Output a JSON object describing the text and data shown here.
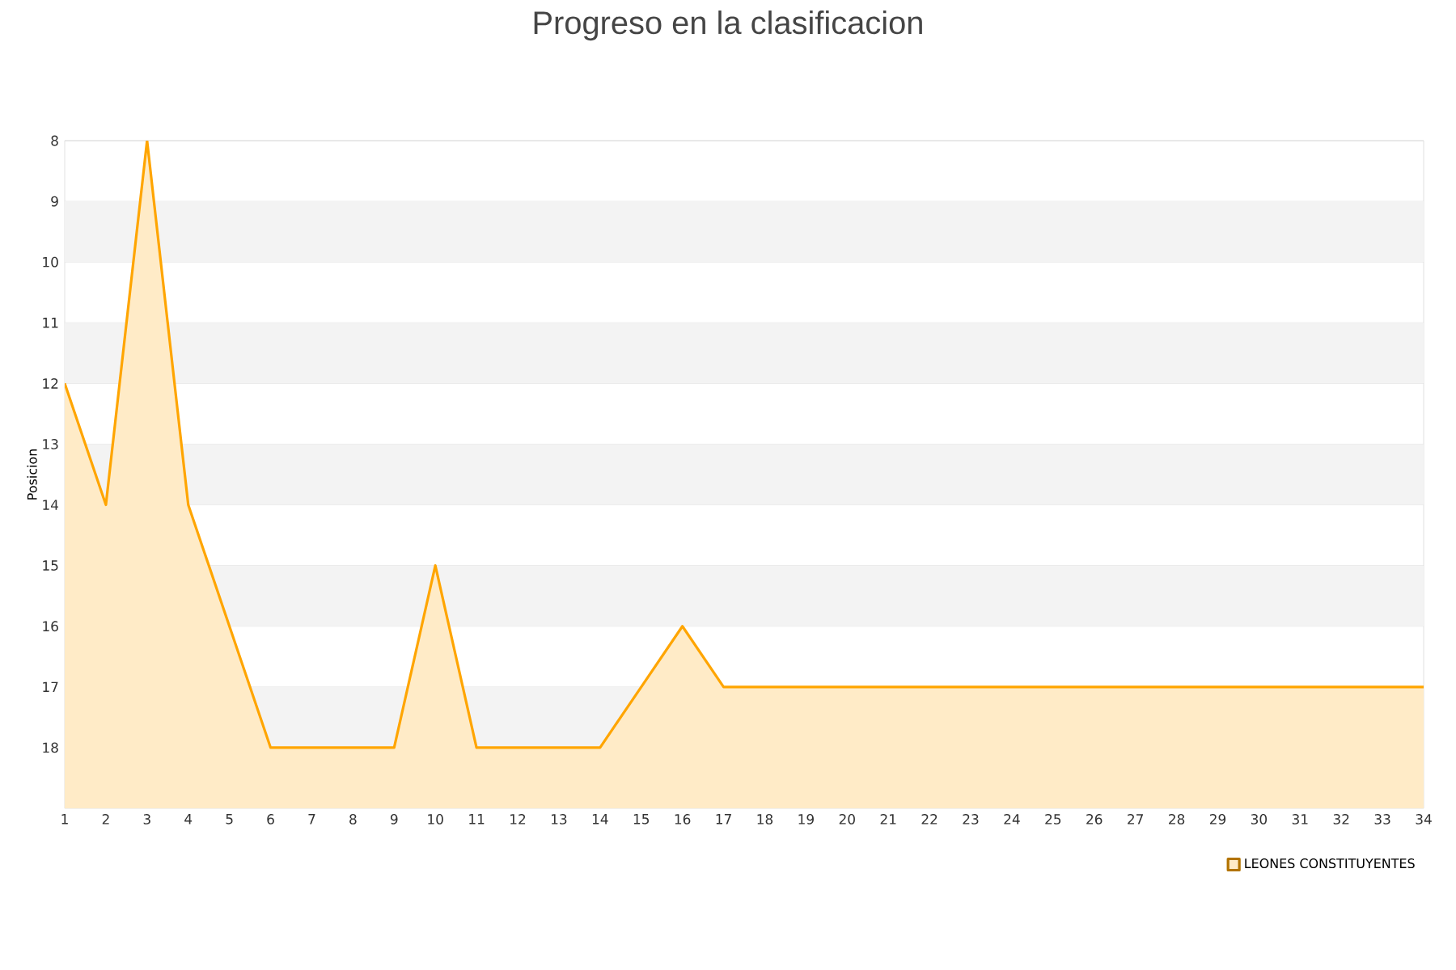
{
  "chart_data": {
    "type": "area",
    "title": "Progreso en la clasificacion",
    "ylabel": "Posicion",
    "x": [
      1,
      2,
      3,
      4,
      5,
      6,
      7,
      8,
      9,
      10,
      11,
      12,
      13,
      14,
      15,
      16,
      17,
      18,
      19,
      20,
      21,
      22,
      23,
      24,
      25,
      26,
      27,
      28,
      29,
      30,
      31,
      32,
      33,
      34
    ],
    "series": [
      {
        "name": "LEONES CONSTITUYENTES",
        "color": "#ffa500",
        "values": [
          12,
          14,
          8,
          14,
          16,
          18,
          18,
          18,
          18,
          15,
          18,
          18,
          18,
          18,
          17,
          16,
          17,
          17,
          17,
          17,
          17,
          17,
          17,
          17,
          17,
          17,
          17,
          17,
          17,
          17,
          17,
          17,
          17,
          17
        ]
      }
    ],
    "xlim": [
      1,
      34
    ],
    "xticks": [
      1,
      2,
      3,
      4,
      5,
      6,
      7,
      8,
      9,
      10,
      11,
      12,
      13,
      14,
      15,
      16,
      17,
      18,
      19,
      20,
      21,
      22,
      23,
      24,
      25,
      26,
      27,
      28,
      29,
      30,
      31,
      32,
      33,
      34
    ],
    "ylim": [
      19,
      8
    ],
    "yticks": [
      8,
      9,
      10,
      11,
      12,
      13,
      14,
      15,
      16,
      17,
      18
    ],
    "bands": [
      {
        "axis": "y",
        "from": 9,
        "to": 10,
        "color": "#f3f3f3"
      },
      {
        "axis": "y",
        "from": 11,
        "to": 12,
        "color": "#f3f3f3"
      },
      {
        "axis": "y",
        "from": 13,
        "to": 14,
        "color": "#f3f3f3"
      },
      {
        "axis": "y",
        "from": 15,
        "to": 16,
        "color": "#f3f3f3"
      },
      {
        "axis": "y",
        "from": 17,
        "to": 18,
        "color": "#f3f3f3"
      }
    ],
    "grid": "y",
    "legend": "bottom right",
    "marker": "none",
    "line_style": "solid"
  }
}
